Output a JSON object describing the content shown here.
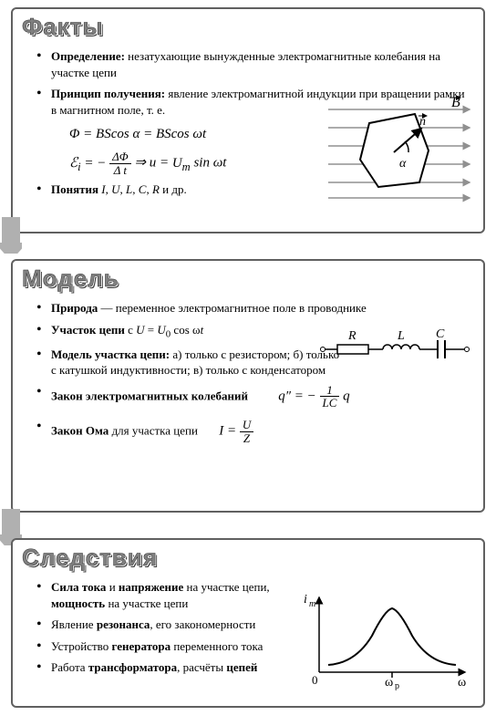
{
  "sections": {
    "facts": {
      "title": "Факты",
      "items": [
        "<b>Определение:</b> незатухающие вынужденные электромагнитные колебания на участке цепи",
        "<b>Принцип получения:</b> явление электромагнитной индукции при вращении рамки в магнитном поле, т. е."
      ],
      "formula1": "Φ = <i>BS</i>cos α = <i>BS</i>cos ω<i>t</i>",
      "formula2_lhs": "ℰ<sub>i</sub> = −",
      "formula2_frac_num": "ΔΦ",
      "formula2_frac_den": "Δ <i>t</i>",
      "formula2_rhs": " ⇒ <i>u</i> = <i>U<sub>m</sub></i> sin ω<i>t</i>",
      "item3": "<b>Понятия</b> <i>I</i>, <i>U</i>, <i>L</i>, <i>C</i>, <i>R</i> и др.",
      "diagram": {
        "B_label": "B",
        "n_label": "n",
        "alpha_label": "α",
        "arrow_color": "#909090",
        "stroke": "#000000"
      }
    },
    "model": {
      "title": "Модель",
      "item1": "<b>Природа</b> — переменное электромагнитное поле в проводнике",
      "item2": "<b>Участок цепи</b> с <i>U</i> = <i>U</i><sub>0</sub> cos ω<i>t</i>",
      "item3": "<b>Модель участка цепи:</b> а) только с резистором; б) только с катушкой индуктивности; в) только с конденсатором",
      "item4": "<b>Закон электромагнитных колебаний</b>",
      "eq4_lhs": "<i>q″</i> = −",
      "eq4_num": "1",
      "eq4_den": "<i>LC</i>",
      "eq4_rhs": "<i>q</i>",
      "item5": "<b>Закон Ома</b> для участка цепи",
      "eq5_lhs": "<i>I</i> = ",
      "eq5_num": "<i>U</i>",
      "eq5_den": "<i>Z</i>",
      "circuit": {
        "R": "R",
        "L": "L",
        "C": "C"
      }
    },
    "cons": {
      "title": "Следствия",
      "item1": "<b>Сила тока</b> и <b>напряжение</b> на участке цепи, <b>мощность</b> на участке цепи",
      "item2": "Явление <b>резонанса</b>, его закономерности",
      "item3": "Устройство <b>генератора</b> переменного тока",
      "item4": "Работа <b>трансформатора</b>, расчёты <b>цепей</b>",
      "chart": {
        "ylabel": "i<sub>m</sub>",
        "xlabel": "ω",
        "peak_label": "ω<sub>р</sub>",
        "zero_label": "0"
      }
    }
  },
  "style": {
    "border_color": "#606060",
    "arrow_fill": "#b0b0b0"
  }
}
